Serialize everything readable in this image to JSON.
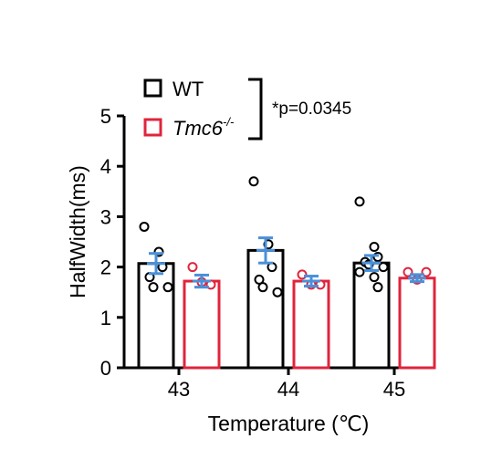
{
  "chart_data": {
    "type": "bar",
    "title": "",
    "xlabel": "Temperature (℃)",
    "ylabel": "HalfWidth(ms)",
    "ylim": [
      0,
      5
    ],
    "yticks": [
      "0",
      "1",
      "2",
      "3",
      "4",
      "5"
    ],
    "categories": [
      "43",
      "44",
      "45"
    ],
    "grid": false,
    "legend_position": "top-left",
    "series": [
      {
        "name": "WT",
        "color": "#000000",
        "values": [
          2.07,
          2.33,
          2.08
        ],
        "sem": [
          0.2,
          0.25,
          0.15
        ],
        "points": [
          [
            2.8,
            2.3,
            2.0,
            1.8,
            1.6,
            1.6
          ],
          [
            3.7,
            2.45,
            2.0,
            1.75,
            1.6,
            1.5
          ],
          [
            3.3,
            2.4,
            2.2,
            2.1,
            2.05,
            2.0,
            1.9,
            1.8,
            1.6
          ]
        ]
      },
      {
        "name_main": "Tmc6",
        "name_sup": "-/-",
        "color": "#e0243c",
        "values": [
          1.72,
          1.72,
          1.78
        ],
        "sem": [
          0.12,
          0.1,
          0.07
        ],
        "points": [
          [
            2.0,
            1.7,
            1.65
          ],
          [
            1.85,
            1.65,
            1.65
          ],
          [
            1.9,
            1.75,
            1.9
          ]
        ]
      }
    ],
    "annotation": "*p=0.0345",
    "errorbar_color": "#4a90d9"
  }
}
